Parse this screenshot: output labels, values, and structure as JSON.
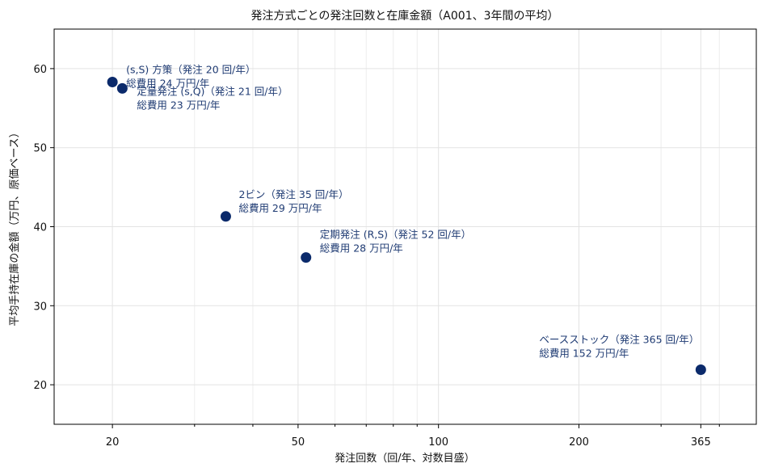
{
  "chart_data": {
    "type": "scatter",
    "title": "発注方式ごとの発注回数と在庫金額（A001、3年間の平均）",
    "xlabel": "発注回数（回/年、対数目盛）",
    "ylabel": "平均手持在庫の金額（万円、原価ベース）",
    "x_scale": "log",
    "xlim": [
      15,
      480
    ],
    "ylim": [
      15,
      65
    ],
    "x_ticks": [
      20,
      50,
      100,
      200,
      365
    ],
    "x_tick_labels": [
      "20",
      "50",
      "100",
      "200",
      "365"
    ],
    "x_minor_ticks": [
      30,
      40,
      60,
      70,
      80,
      90,
      300,
      400
    ],
    "y_ticks": [
      20,
      30,
      40,
      50,
      60
    ],
    "y_tick_labels": [
      "20",
      "30",
      "40",
      "50",
      "60"
    ],
    "grid": true,
    "marker_color": "#0b2a6b",
    "annotation_color": "#1f3b73",
    "points": [
      {
        "x": 20,
        "y": 58.3,
        "label_line1": "(s,S) 方策（発注 20 回/年）",
        "label_line2": "総費用 24 万円/年"
      },
      {
        "x": 21,
        "y": 57.5,
        "label_line1": "定量発注 (s,Q)（発注 21 回/年）",
        "label_line2": "総費用 23 万円/年"
      },
      {
        "x": 35,
        "y": 41.3,
        "label_line1": "2ビン（発注 35 回/年）",
        "label_line2": "総費用 29 万円/年"
      },
      {
        "x": 52,
        "y": 36.1,
        "label_line1": "定期発注 (R,S)（発注 52 回/年）",
        "label_line2": "総費用 28 万円/年"
      },
      {
        "x": 365,
        "y": 21.9,
        "label_line1": "ベースストック（発注 365 回/年）",
        "label_line2": "総費用 152 万円/年"
      }
    ]
  }
}
